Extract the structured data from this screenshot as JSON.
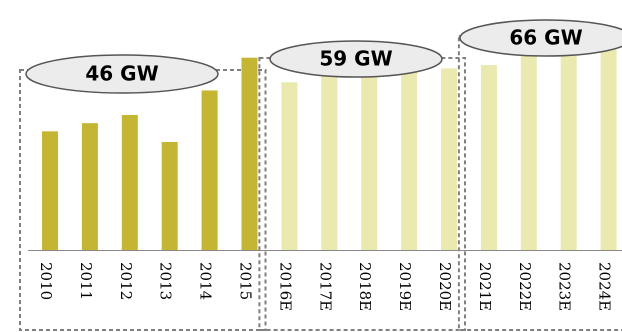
{
  "chart_data": {
    "type": "bar",
    "categories": [
      "2010",
      "2011",
      "2012",
      "2013",
      "2014",
      "2015",
      "2016E",
      "2017E",
      "2018E",
      "2019E",
      "2020E",
      "2021E",
      "2022E",
      "2023E",
      "2024E"
    ],
    "values": [
      14.5,
      15.5,
      16.5,
      13.2,
      19.5,
      23.5,
      20.5,
      21.5,
      23.3,
      22.0,
      22.2,
      22.6,
      24.2,
      25.9,
      26.8
    ],
    "ylim": [
      0,
      27.5
    ],
    "grid": false,
    "legend": "none",
    "groups": [
      {
        "label": "46 GW",
        "start": 0,
        "end": 5,
        "color": "#c4b532"
      },
      {
        "label": "59 GW",
        "start": 6,
        "end": 10,
        "color": "#e9e9b0"
      },
      {
        "label": "66 GW",
        "start": 11,
        "end": 14,
        "color": "#e9e9b0"
      }
    ],
    "colors": {
      "actual": "#c4b532",
      "forecast": "#e9e9b0",
      "baseline": "#888888",
      "box_border": "#808080",
      "label_fill": "#ececec"
    }
  }
}
